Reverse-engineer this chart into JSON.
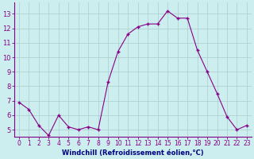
{
  "x": [
    0,
    1,
    2,
    3,
    4,
    5,
    6,
    7,
    8,
    9,
    10,
    11,
    12,
    13,
    14,
    15,
    16,
    17,
    18,
    19,
    20,
    21,
    22,
    23
  ],
  "y": [
    6.9,
    6.4,
    5.3,
    4.6,
    6.0,
    5.2,
    5.0,
    5.2,
    5.0,
    8.3,
    10.4,
    11.6,
    12.1,
    12.3,
    12.3,
    13.2,
    12.7,
    12.7,
    10.5,
    9.0,
    7.5,
    5.9,
    5.0,
    5.3
  ],
  "line_color": "#880088",
  "marker": "+",
  "bg_color": "#cceeee",
  "grid_color": "#aacccc",
  "xlabel": "Windchill (Refroidissement éolien,°C)",
  "ylabel_ticks": [
    5,
    6,
    7,
    8,
    9,
    10,
    11,
    12,
    13
  ],
  "xlim": [
    -0.5,
    23.5
  ],
  "ylim": [
    4.5,
    13.8
  ],
  "tick_color": "#880088",
  "axes_color": "#880088",
  "xlabel_color": "#000080",
  "xlabel_fontsize": 6.0,
  "tick_fontsize": 5.5,
  "ytick_fontsize": 6.0
}
